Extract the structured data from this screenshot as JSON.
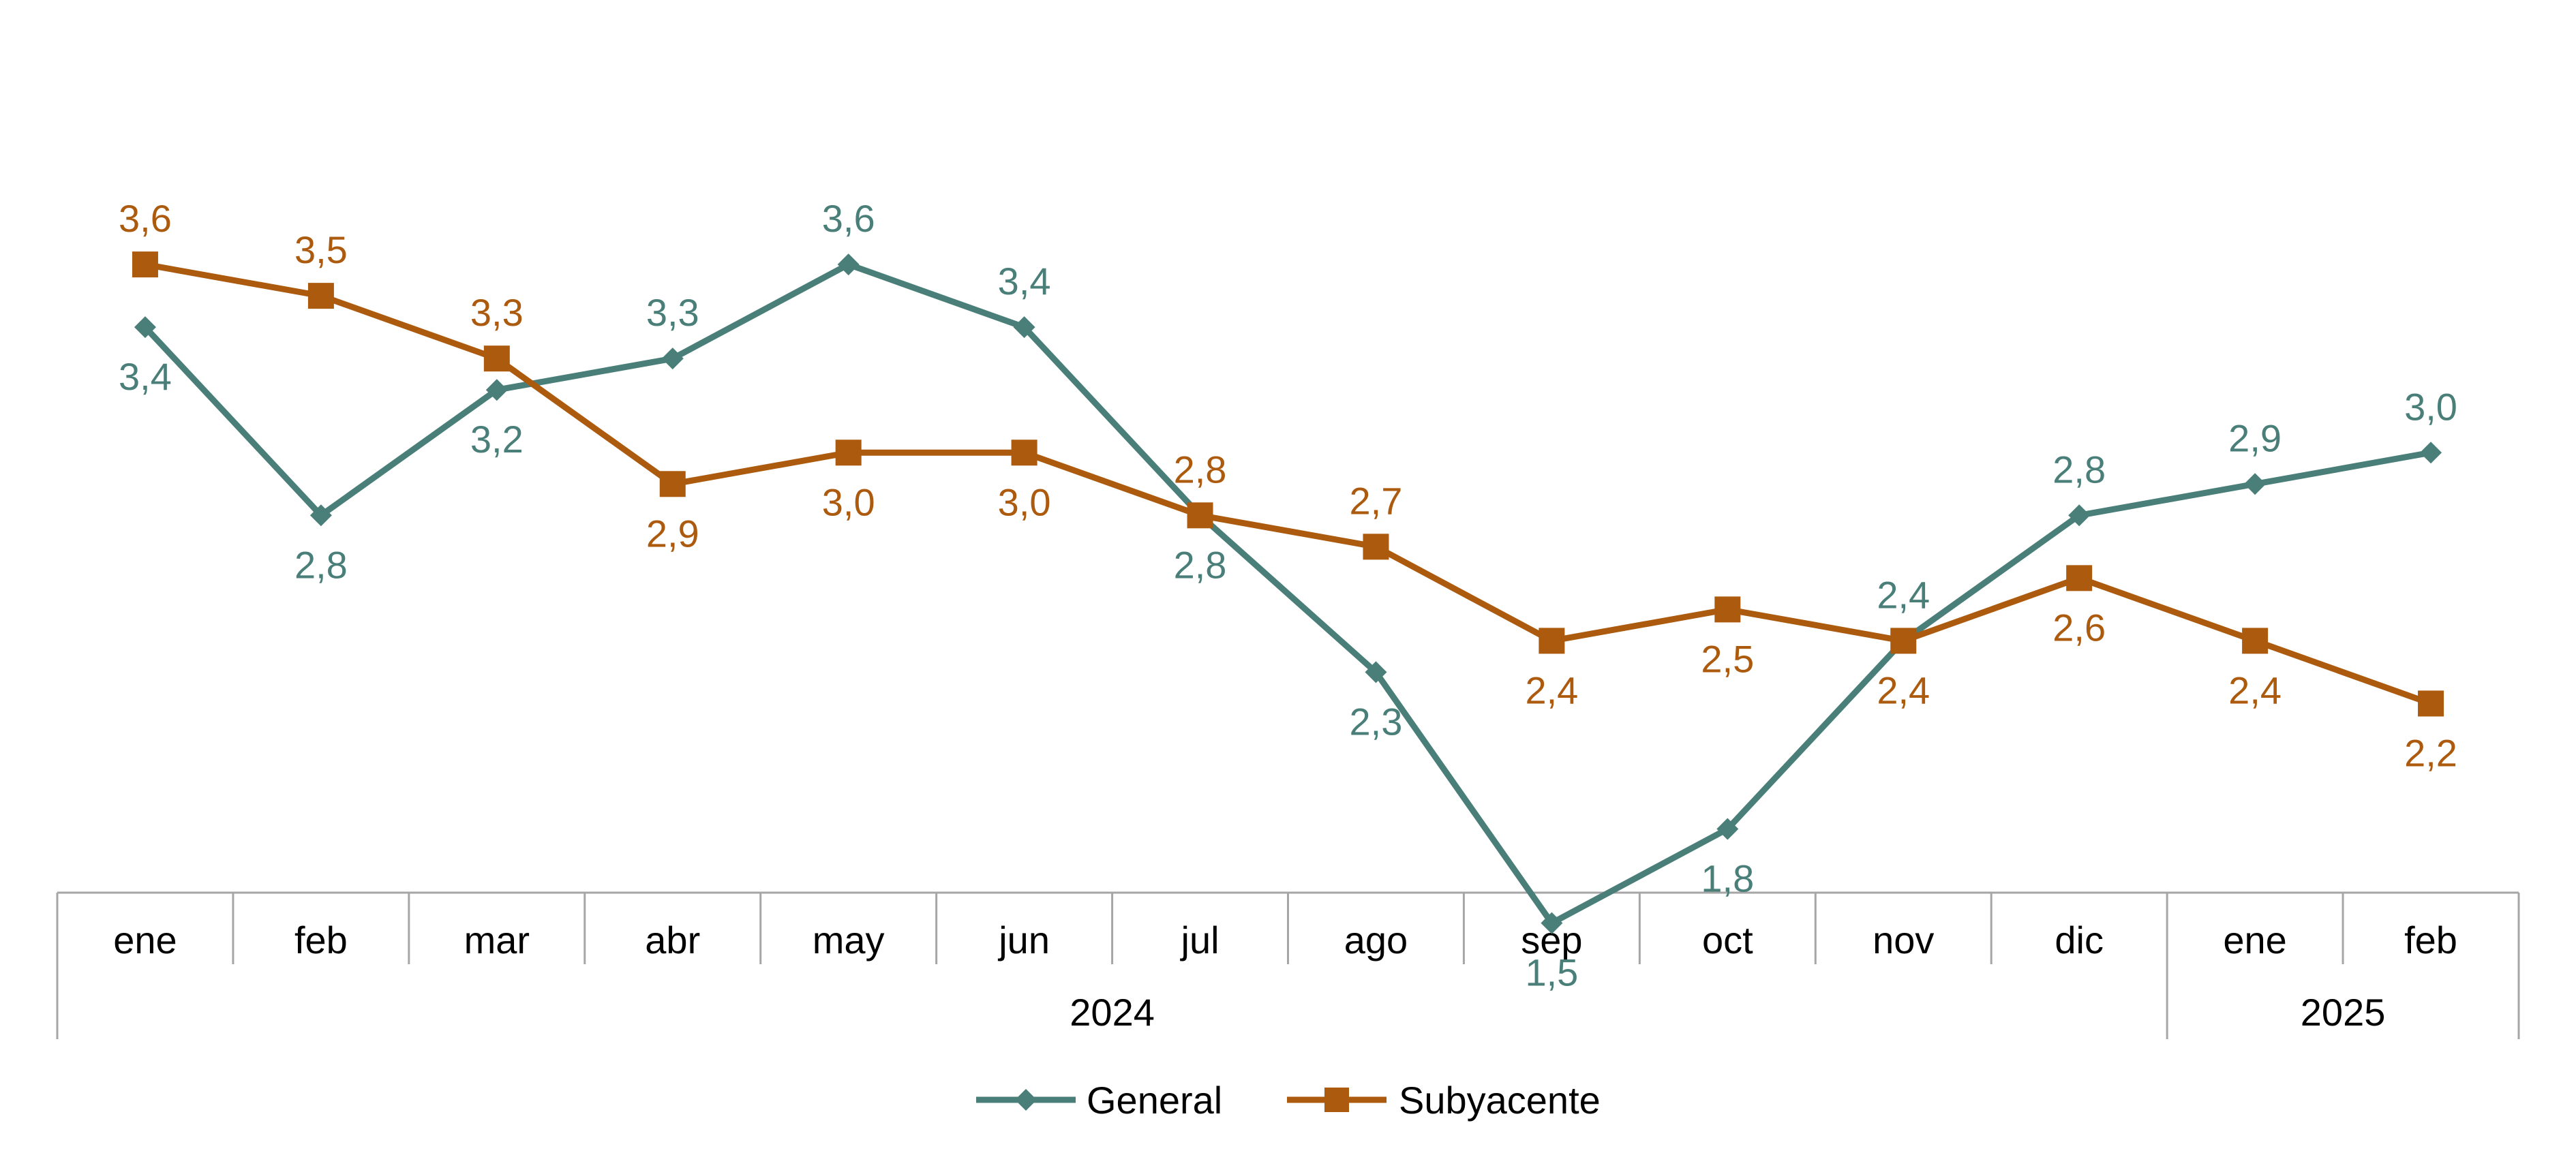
{
  "chart_data": {
    "type": "line",
    "title": "",
    "xlabel": "",
    "ylabel": "",
    "ylim": [
      0.0,
      4.0
    ],
    "grid": false,
    "legend_position": "bottom",
    "categories": [
      "ene",
      "feb",
      "mar",
      "abr",
      "may",
      "jun",
      "jul",
      "ago",
      "sep",
      "oct",
      "nov",
      "dic",
      "ene",
      "feb"
    ],
    "year_groups": [
      {
        "label": "2024",
        "count": 12
      },
      {
        "label": "2025",
        "count": 2
      }
    ],
    "series": [
      {
        "name": "General",
        "color": "#4a7f79",
        "marker": "diamond",
        "values": [
          3.4,
          2.8,
          3.2,
          3.3,
          3.6,
          3.4,
          2.8,
          2.3,
          1.5,
          1.8,
          2.4,
          2.8,
          2.9,
          3.0
        ],
        "labels": [
          "3,4",
          "2,8",
          "3,2",
          "3,3",
          "3,6",
          "3,4",
          "2,8",
          "2,3",
          "1,5",
          "1,8",
          "2,4",
          "2,8",
          "2,9",
          "3,0"
        ]
      },
      {
        "name": "Subyacente",
        "color": "#ac5a0e",
        "marker": "square",
        "values": [
          3.6,
          3.5,
          3.3,
          2.9,
          3.0,
          3.0,
          2.8,
          2.7,
          2.4,
          2.5,
          2.4,
          2.6,
          2.4,
          2.2
        ],
        "labels": [
          "3,6",
          "3,5",
          "3,3",
          "2,9",
          "3,0",
          "3,0",
          "2,8",
          "2,7",
          "2,4",
          "2,5",
          "2,4",
          "2,6",
          "2,4",
          "2,2"
        ]
      }
    ]
  }
}
